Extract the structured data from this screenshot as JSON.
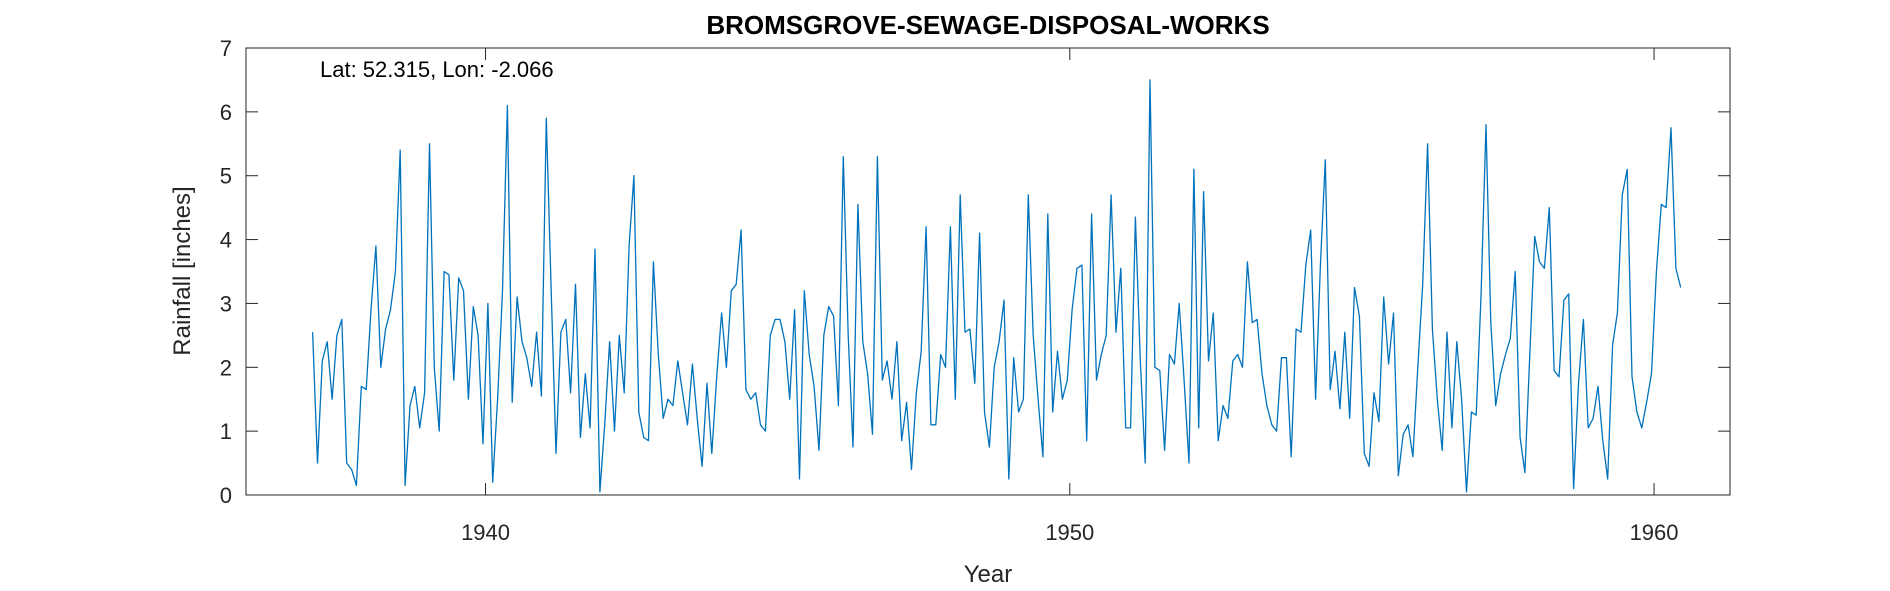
{
  "chart_data": {
    "type": "line",
    "title": "BROMSGROVE-SEWAGE-DISPOSAL-WORKS",
    "annotation": "Lat: 52.315, Lon: -2.066",
    "xlabel": "Year",
    "ylabel": "Rainfall [inches]",
    "xlim": [
      1935.9,
      1961.3
    ],
    "ylim": [
      0,
      7
    ],
    "xticks": [
      1940,
      1950,
      1960
    ],
    "yticks": [
      0,
      1,
      2,
      3,
      4,
      5,
      6,
      7
    ],
    "grid": false,
    "line_color": "#0072BD",
    "series": [
      {
        "x_start": 1937.04,
        "step": 0.0833333,
        "values": [
          2.55,
          0.5,
          2.1,
          2.4,
          1.5,
          2.5,
          2.75,
          0.5,
          0.4,
          0.15,
          1.7,
          1.65,
          2.9,
          3.9,
          2.0,
          2.6,
          2.9,
          3.5,
          5.4,
          0.15,
          1.4,
          1.7,
          1.05,
          1.6,
          5.5,
          2.0,
          1.0,
          3.5,
          3.45,
          1.8,
          3.4,
          3.2,
          1.5,
          2.95,
          2.5,
          0.8,
          3.0,
          0.2,
          1.5,
          3.2,
          6.1,
          1.45,
          3.1,
          2.4,
          2.15,
          1.7,
          2.55,
          1.55,
          5.9,
          3.2,
          0.65,
          2.55,
          2.75,
          1.6,
          3.3,
          0.9,
          1.9,
          1.05,
          3.85,
          0.05,
          1.1,
          2.4,
          1.0,
          2.5,
          1.6,
          3.9,
          5.0,
          1.3,
          0.9,
          0.85,
          3.65,
          2.2,
          1.2,
          1.5,
          1.4,
          2.1,
          1.6,
          1.1,
          2.05,
          1.2,
          0.45,
          1.75,
          0.65,
          1.85,
          2.85,
          2.0,
          3.2,
          3.3,
          4.15,
          1.65,
          1.5,
          1.6,
          1.1,
          1.0,
          2.5,
          2.75,
          2.75,
          2.4,
          1.5,
          2.9,
          0.25,
          3.2,
          2.2,
          1.7,
          0.7,
          2.5,
          2.95,
          2.8,
          1.4,
          5.3,
          2.5,
          0.75,
          4.55,
          2.4,
          1.9,
          0.95,
          5.3,
          1.8,
          2.1,
          1.5,
          2.4,
          0.85,
          1.45,
          0.4,
          1.6,
          2.25,
          4.2,
          1.1,
          1.1,
          2.2,
          2.0,
          4.2,
          1.5,
          4.7,
          2.55,
          2.6,
          1.75,
          4.1,
          1.3,
          0.75,
          2.0,
          2.4,
          3.05,
          0.25,
          2.15,
          1.3,
          1.5,
          4.7,
          2.5,
          1.5,
          0.6,
          4.4,
          1.3,
          2.25,
          1.5,
          1.8,
          2.9,
          3.55,
          3.6,
          0.85,
          4.4,
          1.8,
          2.2,
          2.5,
          4.7,
          2.55,
          3.55,
          1.05,
          1.05,
          4.35,
          2.1,
          0.5,
          6.5,
          2.0,
          1.95,
          0.7,
          2.2,
          2.05,
          3.0,
          1.8,
          0.5,
          5.1,
          1.05,
          4.75,
          2.1,
          2.85,
          0.85,
          1.4,
          1.2,
          2.1,
          2.2,
          2.0,
          3.65,
          2.7,
          2.75,
          1.9,
          1.4,
          1.1,
          1.0,
          2.15,
          2.15,
          0.6,
          2.6,
          2.55,
          3.6,
          4.15,
          1.5,
          3.6,
          5.25,
          1.65,
          2.25,
          1.35,
          2.55,
          1.2,
          3.25,
          2.8,
          0.65,
          0.45,
          1.6,
          1.15,
          3.1,
          2.05,
          2.85,
          0.3,
          0.95,
          1.1,
          0.6,
          2.0,
          3.3,
          5.5,
          2.6,
          1.5,
          0.7,
          2.55,
          1.05,
          2.4,
          1.5,
          0.05,
          1.3,
          1.25,
          3.15,
          5.8,
          2.7,
          1.4,
          1.9,
          2.2,
          2.45,
          3.5,
          0.9,
          0.35,
          2.2,
          4.05,
          3.65,
          3.55,
          4.5,
          1.95,
          1.85,
          3.05,
          3.15,
          0.1,
          1.75,
          2.75,
          1.05,
          1.2,
          1.7,
          0.85,
          0.25,
          2.35,
          2.85,
          4.7,
          5.1,
          1.85,
          1.3,
          1.05,
          1.45,
          1.9,
          3.5,
          4.55,
          4.5,
          5.75,
          3.55,
          3.25
        ]
      }
    ]
  }
}
